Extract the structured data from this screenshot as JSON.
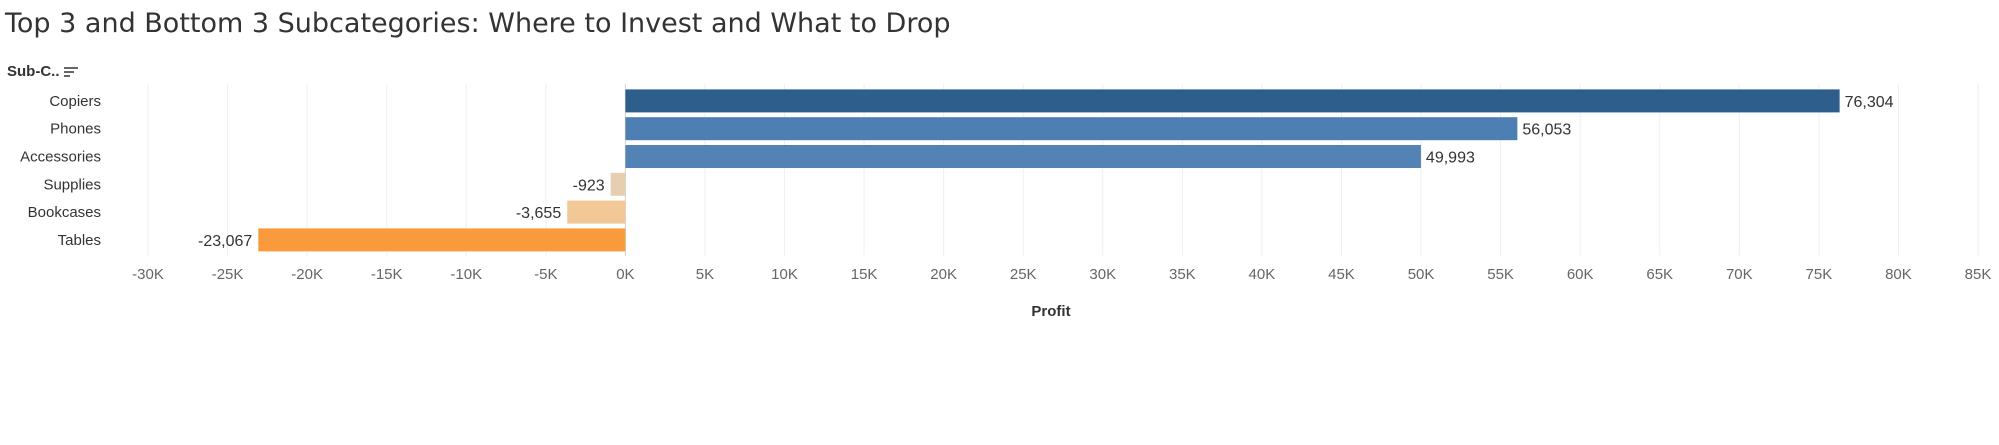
{
  "title": "Top 3 and Bottom 3 Subcategories: Where to Invest and What to Drop",
  "row_header": {
    "label": "Sub-C..",
    "icon": "sort-descending-icon"
  },
  "chart_data": {
    "type": "bar",
    "orientation": "horizontal",
    "title": "Top 3 and Bottom 3 Subcategories: Where to Invest and What to Drop",
    "xlabel": "Profit",
    "ylabel": "Sub-C..",
    "categories": [
      "Copiers",
      "Phones",
      "Accessories",
      "Supplies",
      "Bookcases",
      "Tables"
    ],
    "values": [
      76304,
      56053,
      49993,
      -923,
      -3655,
      -23067
    ],
    "data_labels": [
      "76,304",
      "56,053",
      "49,993",
      "-923",
      "-3,655",
      "-23,067"
    ],
    "colors": [
      "#2e5f8c",
      "#4d7fb2",
      "#5383b5",
      "#e5cfb0",
      "#f2c896",
      "#f99a3d"
    ],
    "xlim": [
      -30000,
      85000
    ],
    "xticks": [
      -30000,
      -25000,
      -20000,
      -15000,
      -10000,
      -5000,
      0,
      5000,
      10000,
      15000,
      20000,
      25000,
      30000,
      35000,
      40000,
      45000,
      50000,
      55000,
      60000,
      65000,
      70000,
      75000,
      80000,
      85000
    ],
    "xtick_labels": [
      "-30K",
      "-25K",
      "-20K",
      "-15K",
      "-10K",
      "-5K",
      "0K",
      "5K",
      "10K",
      "15K",
      "20K",
      "25K",
      "30K",
      "35K",
      "40K",
      "45K",
      "50K",
      "55K",
      "60K",
      "65K",
      "70K",
      "75K",
      "80K",
      "85K"
    ],
    "grid": true,
    "gridline_color": "#efefef",
    "legend": "none"
  }
}
